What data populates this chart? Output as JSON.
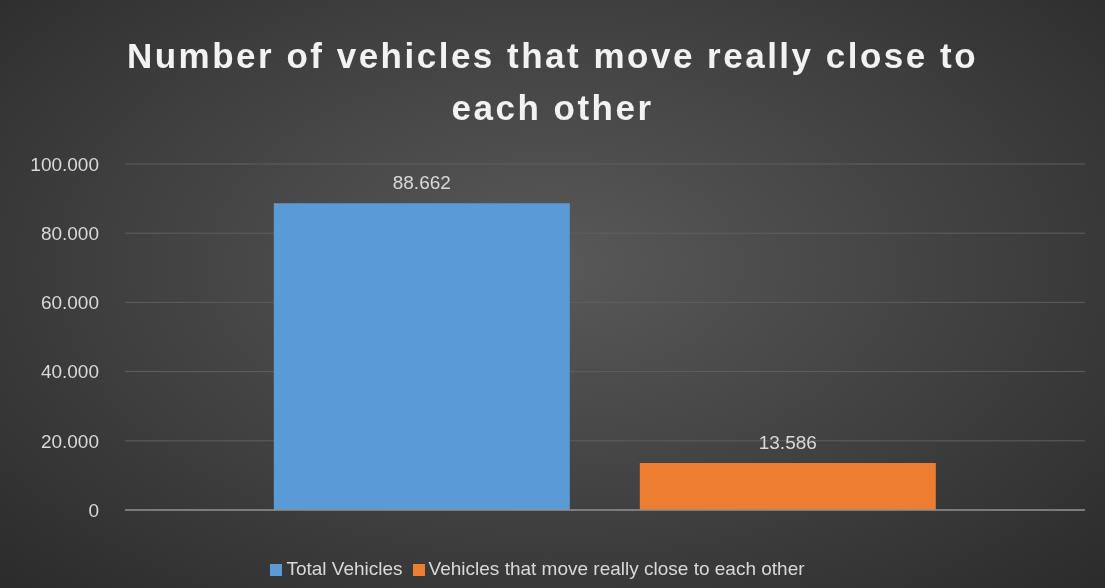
{
  "chart_data": {
    "type": "bar",
    "title": "Number of vehicles that move really close to each other",
    "categories": [
      null
    ],
    "series": [
      {
        "name": "Total Vehicles",
        "color": "#5b9bd5",
        "values": [
          88662
        ],
        "value_labels": [
          "88.662"
        ]
      },
      {
        "name": "Vehicles that move really close to each other",
        "color": "#ed7d31",
        "values": [
          13586
        ],
        "value_labels": [
          "13.586"
        ]
      }
    ],
    "ylim": [
      0,
      100000
    ],
    "yticks": [
      {
        "value": 0,
        "label": "0"
      },
      {
        "value": 20000,
        "label": "20.000"
      },
      {
        "value": 40000,
        "label": "40.000"
      },
      {
        "value": 60000,
        "label": "60.000"
      },
      {
        "value": 80000,
        "label": "80.000"
      },
      {
        "value": 100000,
        "label": "100.000"
      }
    ],
    "grid": "y",
    "legend": "bottom"
  }
}
